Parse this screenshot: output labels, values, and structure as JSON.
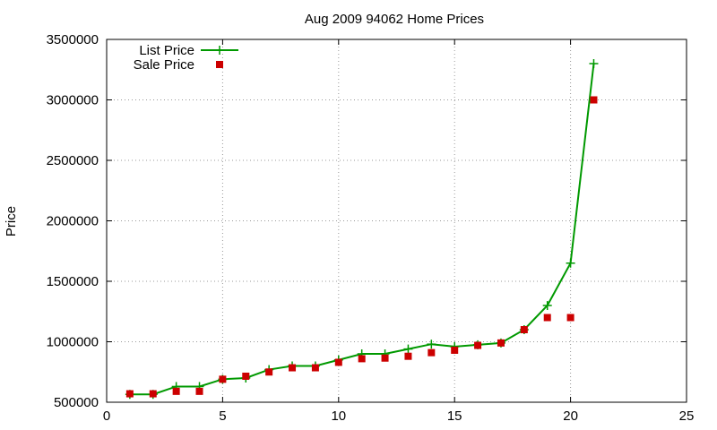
{
  "chart_data": {
    "type": "line",
    "title": "Aug 2009 94062 Home Prices",
    "xlabel": "",
    "ylabel": "Price",
    "xlim": [
      0,
      25
    ],
    "ylim": [
      500000,
      3500000
    ],
    "xticks": [
      0,
      5,
      10,
      15,
      20,
      25
    ],
    "yticks": [
      500000,
      1000000,
      1500000,
      2000000,
      2500000,
      3000000,
      3500000
    ],
    "grid": true,
    "legend_position": "top-left",
    "series": [
      {
        "name": "List Price",
        "style": "line+cross",
        "color": "#009900",
        "x": [
          1,
          2,
          3,
          4,
          5,
          6,
          7,
          8,
          9,
          10,
          11,
          12,
          13,
          14,
          15,
          16,
          17,
          18,
          19,
          20,
          21
        ],
        "y": [
          565000,
          565000,
          630000,
          630000,
          690000,
          700000,
          770000,
          800000,
          800000,
          850000,
          900000,
          900000,
          940000,
          980000,
          960000,
          975000,
          990000,
          1100000,
          1300000,
          1650000,
          3300000
        ]
      },
      {
        "name": "Sale Price",
        "style": "square",
        "color": "#cc0000",
        "x": [
          1,
          2,
          3,
          4,
          5,
          6,
          7,
          8,
          9,
          10,
          11,
          12,
          13,
          14,
          15,
          16,
          17,
          18,
          19,
          20,
          21
        ],
        "y": [
          570000,
          570000,
          590000,
          590000,
          690000,
          715000,
          750000,
          785000,
          785000,
          830000,
          860000,
          865000,
          880000,
          910000,
          930000,
          970000,
          990000,
          1100000,
          1200000,
          1200000,
          3000000
        ]
      }
    ]
  }
}
